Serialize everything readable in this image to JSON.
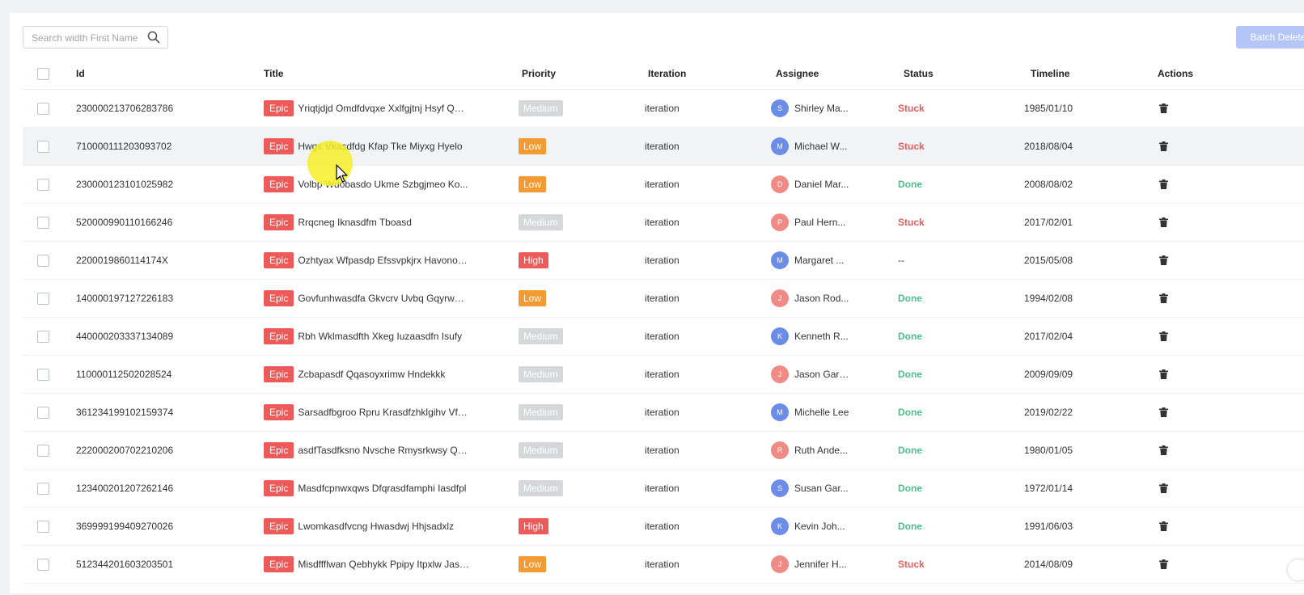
{
  "search": {
    "placeholder": "Search width First Name"
  },
  "toolbar": {
    "batch_delete_label": "Batch Delete"
  },
  "columns": {
    "id": "Id",
    "title": "Title",
    "priority": "Priority",
    "iteration": "Iteration",
    "assignee": "Assignee",
    "status": "Status",
    "timeline": "Timeline",
    "actions": "Actions"
  },
  "colors": {
    "epic": "#ec5a5a",
    "medium": "#d5d7db",
    "low": "#f39a33",
    "high": "#ec5a5a",
    "stuck": "#e35d5d",
    "done": "#4cc08b"
  },
  "rows": [
    {
      "id": "230000213706283786",
      "tag": "Epic",
      "title": "Yriqtjdjd Omdfdvqxe Xxlfgjtnj Hsyf Qecu",
      "priority": "Medium",
      "iteration": "iteration",
      "initial": "S",
      "assignee": "Shirley Ma...",
      "status": "Stuck",
      "timeline": "1985/01/10"
    },
    {
      "id": "710000111203093702",
      "tag": "Epic",
      "title": "Hwgx Vkasdfdg Kfap Tke Miyxg Hyelo",
      "priority": "Low",
      "iteration": "iteration",
      "initial": "M",
      "assignee": "Michael W...",
      "status": "Stuck",
      "timeline": "2018/08/04"
    },
    {
      "id": "230000123101025982",
      "tag": "Epic",
      "title": "Volbp Wdobasdo Ukme Szbgjmeo Ko...",
      "priority": "Low",
      "iteration": "iteration",
      "initial": "D",
      "assignee": "Daniel Mar...",
      "status": "Done",
      "timeline": "2008/08/02"
    },
    {
      "id": "520000990110166246",
      "tag": "Epic",
      "title": "Rrqcneg Iknasdfm Tboasd",
      "priority": "Medium",
      "iteration": "iteration",
      "initial": "P",
      "assignee": "Paul Hern...",
      "status": "Stuck",
      "timeline": "2017/02/01"
    },
    {
      "id": "2200019860114174X",
      "tag": "Epic",
      "title": "Ozhtyax Wfpasdp Efssvpkjrx Havonov ...",
      "priority": "High",
      "iteration": "iteration",
      "initial": "M",
      "assignee": "Margaret ...",
      "status": "--",
      "timeline": "2015/05/08"
    },
    {
      "id": "140000197127226183",
      "tag": "Epic",
      "title": "Govfunhwasdfa Gkvcrv Uvbq Gqyrwnt...",
      "priority": "Low",
      "iteration": "iteration",
      "initial": "J",
      "assignee": "Jason Rod...",
      "status": "Done",
      "timeline": "1994/02/08"
    },
    {
      "id": "440000203337134089",
      "tag": "Epic",
      "title": "Rbh Wklmasdfth Xkeg Iuzaasdfn Isufy",
      "priority": "Medium",
      "iteration": "iteration",
      "initial": "K",
      "assignee": "Kenneth R...",
      "status": "Done",
      "timeline": "2017/02/04"
    },
    {
      "id": "110000112502028524",
      "tag": "Epic",
      "title": "Zcbapasdf Qqasoyxrimw Hndekkk",
      "priority": "Medium",
      "iteration": "iteration",
      "initial": "J",
      "assignee": "Jason Garcia",
      "status": "Done",
      "timeline": "2009/09/09"
    },
    {
      "id": "361234199102159374",
      "tag": "Epic",
      "title": "Sarsadfbgroo Rpru Krasdfzhklgihv Vfg...",
      "priority": "Medium",
      "iteration": "iteration",
      "initial": "M",
      "assignee": "Michelle Lee",
      "status": "Done",
      "timeline": "2019/02/22"
    },
    {
      "id": "222000200702210206",
      "tag": "Epic",
      "title": "asdfTasdfksno Nvsche Rmysrkwsy Qxj...",
      "priority": "Medium",
      "iteration": "iteration",
      "initial": "R",
      "assignee": "Ruth Ande...",
      "status": "Done",
      "timeline": "1980/01/05"
    },
    {
      "id": "123400201207262146",
      "tag": "Epic",
      "title": "Masdfcpnwxqws Dfqrasdfamphi Iasdfpl",
      "priority": "Medium",
      "iteration": "iteration",
      "initial": "S",
      "assignee": "Susan Gar...",
      "status": "Done",
      "timeline": "1972/01/14"
    },
    {
      "id": "369999199409270026",
      "tag": "Epic",
      "title": "Lwomkasdfvcng Hwasdwj Hhjsadxlz",
      "priority": "High",
      "iteration": "iteration",
      "initial": "K",
      "assignee": "Kevin Joh...",
      "status": "Done",
      "timeline": "1991/06/03"
    },
    {
      "id": "512344201603203501",
      "tag": "Epic",
      "title": "Misdffflwan Qebhykk Ppipy Itpxlw Jasd...",
      "priority": "Low",
      "iteration": "iteration",
      "initial": "J",
      "assignee": "Jennifer H...",
      "status": "Stuck",
      "timeline": "2014/08/09"
    }
  ]
}
